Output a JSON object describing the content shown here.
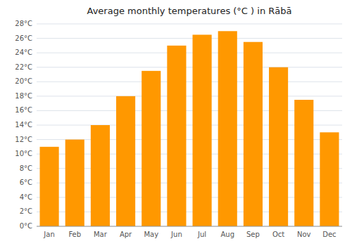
{
  "chart_data": {
    "type": "bar",
    "title": "Average monthly temperatures (°C ) in Rābā",
    "categories": [
      "Jan",
      "Feb",
      "Mar",
      "Apr",
      "May",
      "Jun",
      "Jul",
      "Aug",
      "Sep",
      "Oct",
      "Nov",
      "Dec"
    ],
    "values": [
      11,
      12,
      14,
      18,
      21.5,
      25,
      26.5,
      27,
      25.5,
      22,
      17.5,
      13
    ],
    "color": "#FF9800",
    "ylim": [
      0,
      28
    ],
    "yticks": [
      {
        "value": 0,
        "label": "0°C"
      },
      {
        "value": 2,
        "label": "2°C"
      },
      {
        "value": 4,
        "label": "4°C"
      },
      {
        "value": 6,
        "label": "6°C"
      },
      {
        "value": 8,
        "label": "8°C"
      },
      {
        "value": 10,
        "label": "10°C"
      },
      {
        "value": 12,
        "label": "12°C"
      },
      {
        "value": 14,
        "label": "14°C"
      },
      {
        "value": 16,
        "label": "16°C"
      },
      {
        "value": 18,
        "label": "18°C"
      },
      {
        "value": 20,
        "label": "20°C"
      },
      {
        "value": 22,
        "label": "22°C"
      },
      {
        "value": 24,
        "label": "24°C"
      },
      {
        "value": 26,
        "label": "26°C"
      },
      {
        "value": 28,
        "label": "28°C"
      }
    ],
    "grid": true
  }
}
